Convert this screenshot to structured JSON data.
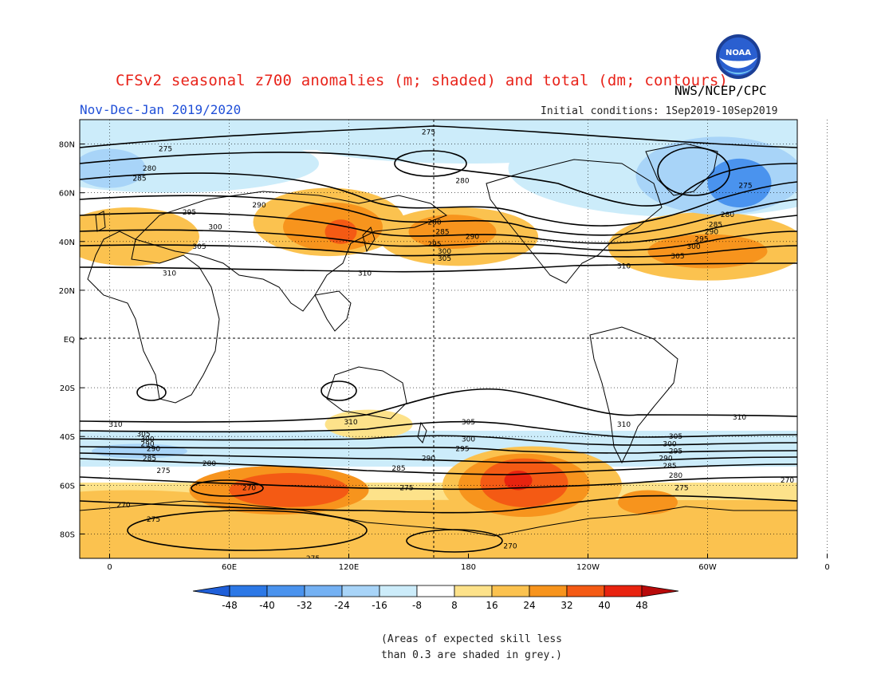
{
  "header": {
    "title": "CFSv2 seasonal z700 anomalies (m; shaded) and total (dm; contours)",
    "period": "Nov-Dec-Jan 2019/2020",
    "agency": "NWS/NCEP/CPC",
    "initial_conditions": "Initial conditions: 1Sep2019-10Sep2019",
    "logo_text": "NOAA"
  },
  "map": {
    "projection": "cylindrical-equidistant",
    "lat_ticks": [
      "80N",
      "60N",
      "40N",
      "20N",
      "EQ",
      "20S",
      "40S",
      "60S",
      "80S"
    ],
    "lon_ticks": [
      "0",
      "60E",
      "120E",
      "180",
      "120W",
      "60W",
      "0"
    ],
    "contour_labels": [
      {
        "text": "275",
        "lon": 160,
        "lat": 85
      },
      {
        "text": "275",
        "lon": 28,
        "lat": 78
      },
      {
        "text": "280",
        "lon": 20,
        "lat": 70
      },
      {
        "text": "285",
        "lon": 15,
        "lat": 66
      },
      {
        "text": "295",
        "lon": 40,
        "lat": 52
      },
      {
        "text": "290",
        "lon": 75,
        "lat": 55
      },
      {
        "text": "300",
        "lon": 53,
        "lat": 46
      },
      {
        "text": "305",
        "lon": 45,
        "lat": 38
      },
      {
        "text": "310",
        "lon": 30,
        "lat": 27
      },
      {
        "text": "310",
        "lon": 128,
        "lat": 27
      },
      {
        "text": "280",
        "lon": 177,
        "lat": 65
      },
      {
        "text": "280",
        "lon": 163,
        "lat": 48
      },
      {
        "text": "285",
        "lon": 167,
        "lat": 44
      },
      {
        "text": "290",
        "lon": 182,
        "lat": 42
      },
      {
        "text": "295",
        "lon": 163,
        "lat": 39
      },
      {
        "text": "300",
        "lon": 168,
        "lat": 36
      },
      {
        "text": "305",
        "lon": 168,
        "lat": 33
      },
      {
        "text": "310",
        "lon": 258,
        "lat": 30
      },
      {
        "text": "275",
        "lon": 319,
        "lat": 63
      },
      {
        "text": "280",
        "lon": 310,
        "lat": 51
      },
      {
        "text": "285",
        "lon": 304,
        "lat": 47
      },
      {
        "text": "290",
        "lon": 302,
        "lat": 44
      },
      {
        "text": "295",
        "lon": 297,
        "lat": 41
      },
      {
        "text": "300",
        "lon": 293,
        "lat": 38
      },
      {
        "text": "305",
        "lon": 285,
        "lat": 34
      },
      {
        "text": "310",
        "lon": 3,
        "lat": -35
      },
      {
        "text": "305",
        "lon": 17,
        "lat": -39
      },
      {
        "text": "300",
        "lon": 19,
        "lat": -41
      },
      {
        "text": "290",
        "lon": 19,
        "lat": -43
      },
      {
        "text": "290",
        "lon": 22,
        "lat": -45
      },
      {
        "text": "285",
        "lon": 20,
        "lat": -49
      },
      {
        "text": "275",
        "lon": 27,
        "lat": -54
      },
      {
        "text": "280",
        "lon": 50,
        "lat": -51
      },
      {
        "text": "270",
        "lon": 70,
        "lat": -61
      },
      {
        "text": "270",
        "lon": 7,
        "lat": -68
      },
      {
        "text": "275",
        "lon": 22,
        "lat": -74
      },
      {
        "text": "275",
        "lon": 102,
        "lat": -90
      },
      {
        "text": "310",
        "lon": 121,
        "lat": -34
      },
      {
        "text": "305",
        "lon": 180,
        "lat": -34
      },
      {
        "text": "300",
        "lon": 180,
        "lat": -41
      },
      {
        "text": "295",
        "lon": 177,
        "lat": -45
      },
      {
        "text": "290",
        "lon": 160,
        "lat": -49
      },
      {
        "text": "285",
        "lon": 145,
        "lat": -53
      },
      {
        "text": "275",
        "lon": 149,
        "lat": -61
      },
      {
        "text": "310",
        "lon": 258,
        "lat": -35
      },
      {
        "text": "310",
        "lon": 316,
        "lat": -32
      },
      {
        "text": "305",
        "lon": 284,
        "lat": -40
      },
      {
        "text": "300",
        "lon": 281,
        "lat": -43
      },
      {
        "text": "295",
        "lon": 284,
        "lat": -46
      },
      {
        "text": "290",
        "lon": 279,
        "lat": -49
      },
      {
        "text": "285",
        "lon": 281,
        "lat": -52
      },
      {
        "text": "280",
        "lon": 284,
        "lat": -56
      },
      {
        "text": "275",
        "lon": 287,
        "lat": -61
      },
      {
        "text": "270",
        "lon": 340,
        "lat": -58
      },
      {
        "text": "270",
        "lon": 201,
        "lat": -85
      }
    ],
    "anomaly_regions": [
      {
        "value": -40,
        "lon": 316,
        "lat": 64,
        "rlon": 16,
        "rlat": 10
      },
      {
        "value": -24,
        "lon": 306,
        "lat": 67,
        "rlon": 42,
        "rlat": 16
      },
      {
        "value": -16,
        "lon": 290,
        "lat": 70,
        "rlon": 90,
        "rlat": 20
      },
      {
        "value": -16,
        "lon": 30,
        "lat": 72,
        "rlon": 75,
        "rlat": 12
      },
      {
        "value": -16,
        "lon": 180,
        "lat": 80,
        "rlon": 80,
        "rlat": 8
      },
      {
        "value": -24,
        "lon": 0,
        "lat": 70,
        "rlon": 18,
        "rlat": 8
      },
      {
        "value": 16,
        "lon": 110,
        "lat": 48,
        "rlon": 38,
        "rlat": 14
      },
      {
        "value": 24,
        "lon": 112,
        "lat": 46,
        "rlon": 25,
        "rlat": 10
      },
      {
        "value": 32,
        "lon": 116,
        "lat": 44,
        "rlon": 8,
        "rlat": 5
      },
      {
        "value": 16,
        "lon": 175,
        "lat": 42,
        "rlon": 40,
        "rlat": 12
      },
      {
        "value": 24,
        "lon": 172,
        "lat": 44,
        "rlon": 22,
        "rlat": 7
      },
      {
        "value": 16,
        "lon": 300,
        "lat": 38,
        "rlon": 50,
        "rlat": 14
      },
      {
        "value": 24,
        "lon": 300,
        "lat": 36,
        "rlon": 30,
        "rlat": 7
      },
      {
        "value": 16,
        "lon": 10,
        "lat": 42,
        "rlon": 35,
        "rlat": 12
      },
      {
        "value": 16,
        "lon": 212,
        "lat": -60,
        "rlon": 45,
        "rlat": 16
      },
      {
        "value": 24,
        "lon": 208,
        "lat": -60,
        "rlon": 33,
        "rlat": 13
      },
      {
        "value": 32,
        "lon": 208,
        "lat": -59,
        "rlon": 22,
        "rlat": 10
      },
      {
        "value": 40,
        "lon": 205,
        "lat": -58,
        "rlon": 7,
        "rlat": 4
      },
      {
        "value": 16,
        "lon": 180,
        "lat": -78,
        "rlon": 180,
        "rlat": 12
      },
      {
        "value": 24,
        "lon": 85,
        "lat": -62,
        "rlon": 45,
        "rlat": 10
      },
      {
        "value": 32,
        "lon": 90,
        "lat": -62,
        "rlon": 30,
        "rlat": 7
      },
      {
        "value": 24,
        "lon": 270,
        "lat": -67,
        "rlon": 15,
        "rlat": 5
      },
      {
        "value": 16,
        "lon": 10,
        "lat": -68,
        "rlon": 55,
        "rlat": 6
      },
      {
        "value": -16,
        "lon": 10,
        "lat": -47,
        "rlon": 40,
        "rlat": 5
      },
      {
        "value": -24,
        "lon": 15,
        "lat": -46,
        "rlon": 24,
        "rlat": 3
      },
      {
        "value": -16,
        "lon": 330,
        "lat": -46,
        "rlon": 28,
        "rlat": 4
      },
      {
        "value": 8,
        "lon": 130,
        "lat": -35,
        "rlon": 22,
        "rlat": 6
      }
    ]
  },
  "colorbar": {
    "ticks": [
      "-48",
      "-40",
      "-32",
      "-24",
      "-16",
      "-8",
      "8",
      "16",
      "24",
      "32",
      "40",
      "48"
    ],
    "colors": [
      "#1f5fd9",
      "#2c78e6",
      "#4a93ee",
      "#74b1f3",
      "#a8d4f8",
      "#ccecfa",
      "#ffffff",
      "#fde28a",
      "#fbc24f",
      "#f7941d",
      "#f45a14",
      "#e8230f",
      "#b80a0a"
    ]
  },
  "footnote": {
    "line1": "(Areas of expected skill less",
    "line2": "than 0.3 are shaded in grey.)"
  }
}
